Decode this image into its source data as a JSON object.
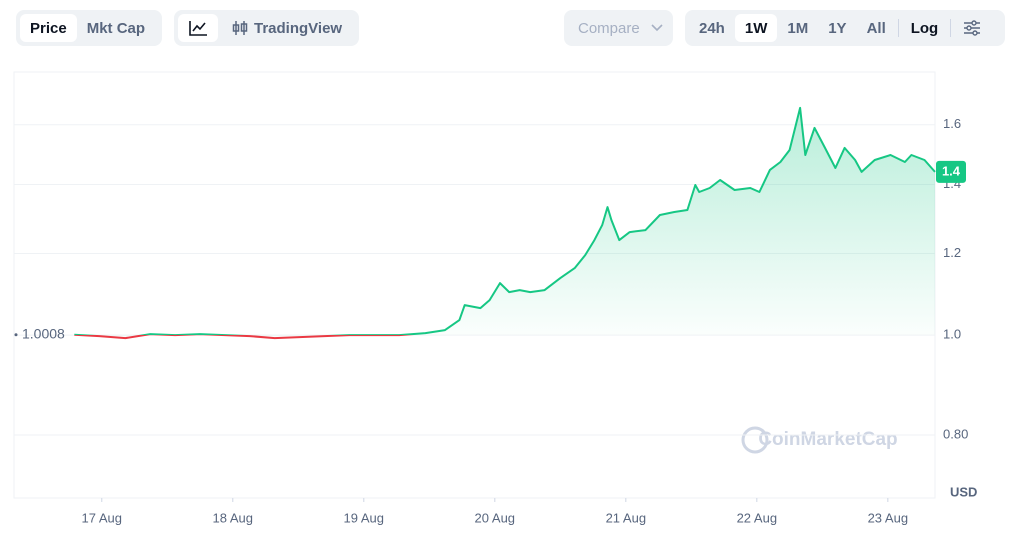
{
  "toolbar": {
    "price": "Price",
    "mkt_cap": "Mkt Cap",
    "tradingview": "TradingView",
    "compare": "Compare",
    "ranges": [
      "24h",
      "1W",
      "1M",
      "1Y",
      "All"
    ],
    "log": "Log"
  },
  "chart_data": {
    "type": "line",
    "log_scale": true,
    "grid": true,
    "watermark": "CoinMarketCap",
    "ylabel": "USD",
    "baseline": 1.0008,
    "current_price_label": "1.4",
    "up_color": "#16c784",
    "down_color": "#ea3943",
    "xlim": [
      16.33,
      23.36
    ],
    "ylim": [
      0.695,
      1.8
    ],
    "xticks": [
      {
        "value": 17,
        "label": "17 Aug"
      },
      {
        "value": 18,
        "label": "18 Aug"
      },
      {
        "value": 19,
        "label": "19 Aug"
      },
      {
        "value": 20,
        "label": "20 Aug"
      },
      {
        "value": 21,
        "label": "21 Aug"
      },
      {
        "value": 22,
        "label": "22 Aug"
      },
      {
        "value": 23,
        "label": "23 Aug"
      }
    ],
    "yticks": [
      {
        "value": 0.8,
        "label": "0.80"
      },
      {
        "value": 1,
        "label": "1.0"
      },
      1.2,
      1.4,
      1.6
    ],
    "x": [
      16.79,
      16.98,
      17.18,
      17.37,
      17.56,
      17.75,
      17.94,
      18.13,
      18.32,
      18.51,
      18.7,
      18.89,
      19.08,
      19.27,
      19.47,
      19.62,
      19.73,
      19.77,
      19.89,
      19.96,
      20.04,
      20.11,
      20.19,
      20.27,
      20.38,
      20.5,
      20.61,
      20.69,
      20.76,
      20.82,
      20.86,
      20.89,
      20.95,
      21.03,
      21.15,
      21.26,
      21.37,
      21.47,
      21.53,
      21.56,
      21.64,
      21.72,
      21.83,
      21.95,
      22.02,
      22.1,
      22.18,
      22.25,
      22.33,
      22.37,
      22.44,
      22.52,
      22.6,
      22.67,
      22.75,
      22.8,
      22.9,
      23.02,
      23.13,
      23.18,
      23.28,
      23.36
    ],
    "values": [
      1.0008,
      0.9978,
      0.9933,
      1.0022,
      1.0,
      1.0022,
      1.0,
      0.9978,
      0.9933,
      0.9955,
      0.9978,
      1.0,
      1.0,
      1.0,
      1.0045,
      1.0112,
      1.0341,
      1.0694,
      1.0622,
      1.0813,
      1.1232,
      1.1008,
      1.1058,
      1.1008,
      1.1058,
      1.1358,
      1.1614,
      1.1958,
      1.2364,
      1.2786,
      1.3311,
      1.2932,
      1.2364,
      1.2589,
      1.2645,
      1.3078,
      1.3166,
      1.3225,
      1.3985,
      1.3767,
      1.3891,
      1.4143,
      1.383,
      1.3891,
      1.3767,
      1.4463,
      1.4723,
      1.5122,
      1.6613,
      1.4955,
      1.5888,
      1.5192,
      1.4527,
      1.5192,
      1.4787,
      1.44,
      1.4787,
      1.4955,
      1.4723,
      1.4955,
      1.4787,
      1.44
    ]
  }
}
